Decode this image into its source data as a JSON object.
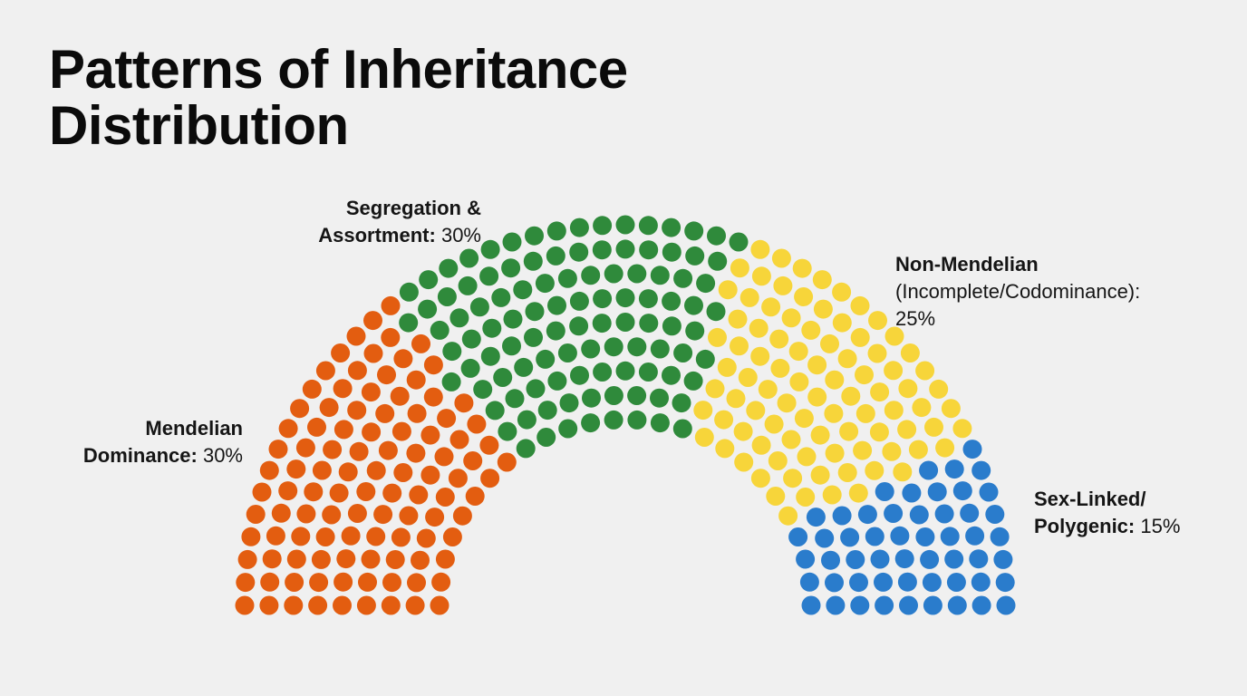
{
  "title": {
    "line1": "Patterns of Inheritance",
    "line2": "Distribution"
  },
  "labels": [
    {
      "line1": "Mendelian",
      "line2": "Dominance:",
      "pct": "30%"
    },
    {
      "line1": "Segregation &",
      "line2": "Assortment:",
      "pct": "30%"
    },
    {
      "line1": "Non-Mendelian",
      "line2": "(Incomplete/Codominance):",
      "pct": "25%"
    },
    {
      "line1": "Sex-Linked/",
      "line2": "Polygenic:",
      "pct": "15%"
    }
  ],
  "chart_data": {
    "type": "parliament",
    "title": "Patterns of Inheritance Distribution",
    "series": [
      {
        "name": "Mendelian Dominance",
        "value": 30,
        "color": "#e35d10"
      },
      {
        "name": "Segregation & Assortment",
        "value": 30,
        "color": "#2f8a3b"
      },
      {
        "name": "Non-Mendelian (Incomplete/Codominance)",
        "value": 25,
        "color": "#f7d53a"
      },
      {
        "name": "Sex-Linked/Polygenic",
        "value": 15,
        "color": "#2a7ccc"
      }
    ]
  }
}
